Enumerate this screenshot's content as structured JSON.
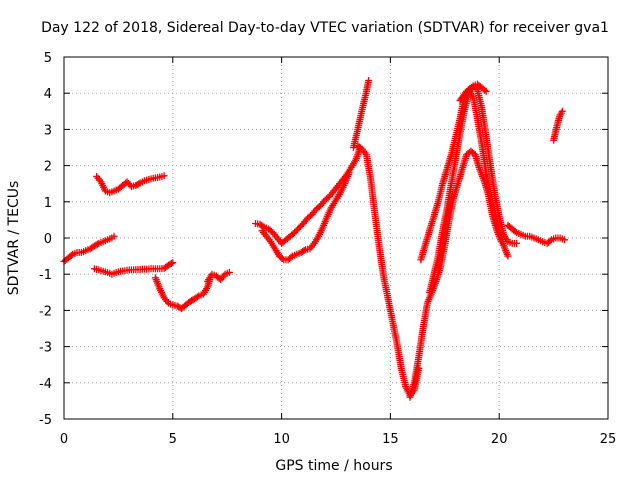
{
  "chart_data": {
    "type": "scatter",
    "title": "Day 122 of 2018, Sidereal Day-to-day VTEC variation (SDTVAR) for receiver gva1",
    "xlabel": "GPS time / hours",
    "ylabel": "SDTVAR / TECUs",
    "xlim": [
      0,
      25
    ],
    "ylim": [
      -5,
      5
    ],
    "xticks": [
      0,
      5,
      10,
      15,
      20,
      25
    ],
    "yticks": [
      -5,
      -4,
      -3,
      -2,
      -1,
      0,
      1,
      2,
      3,
      4,
      5
    ],
    "grid": true,
    "marker": "+",
    "color": "#ff0000",
    "series": [
      {
        "x": [
          0.0,
          0.2,
          0.4,
          0.6,
          0.8,
          1.0,
          1.2,
          1.4,
          1.6,
          1.8,
          2.0,
          2.2,
          2.3
        ],
        "y": [
          -0.65,
          -0.55,
          -0.45,
          -0.4,
          -0.4,
          -0.35,
          -0.3,
          -0.22,
          -0.15,
          -0.1,
          -0.05,
          0.0,
          0.05
        ]
      },
      {
        "x": [
          1.5,
          1.7,
          1.9,
          2.1,
          2.3,
          2.5,
          2.7,
          2.9,
          3.1,
          3.3,
          3.5,
          3.7,
          3.9,
          4.1,
          4.3,
          4.5,
          4.6
        ],
        "y": [
          1.7,
          1.55,
          1.3,
          1.25,
          1.3,
          1.35,
          1.45,
          1.55,
          1.42,
          1.45,
          1.52,
          1.58,
          1.62,
          1.65,
          1.67,
          1.7,
          1.72
        ]
      },
      {
        "x": [
          1.4,
          1.6,
          1.8,
          2.0,
          2.2,
          2.4,
          2.6,
          2.8,
          3.0,
          3.2,
          3.4,
          3.6,
          3.8,
          4.0,
          4.2,
          4.4,
          4.6,
          4.8,
          5.0
        ],
        "y": [
          -0.85,
          -0.88,
          -0.92,
          -0.95,
          -1.0,
          -0.95,
          -0.92,
          -0.9,
          -0.88,
          -0.88,
          -0.87,
          -0.86,
          -0.86,
          -0.85,
          -0.85,
          -0.85,
          -0.84,
          -0.75,
          -0.68
        ]
      },
      {
        "x": [
          4.2,
          4.4,
          4.6,
          4.8,
          5.0,
          5.2,
          5.4,
          5.6,
          5.8,
          6.0,
          6.2,
          6.4,
          6.6,
          6.7
        ],
        "y": [
          -1.1,
          -1.4,
          -1.65,
          -1.8,
          -1.85,
          -1.88,
          -1.95,
          -1.85,
          -1.75,
          -1.68,
          -1.6,
          -1.55,
          -1.35,
          -1.15
        ]
      },
      {
        "x": [
          6.6,
          6.8,
          7.0,
          7.2,
          7.4,
          7.6
        ],
        "y": [
          -1.2,
          -1.0,
          -1.05,
          -1.15,
          -1.0,
          -0.95
        ]
      },
      {
        "x": [
          8.8,
          9.0,
          9.2,
          9.4,
          9.6,
          9.8,
          10.0,
          10.2,
          10.4,
          10.6,
          10.8,
          11.0,
          11.2,
          11.4,
          11.6,
          11.8,
          12.0,
          12.2,
          12.4,
          12.6,
          12.8,
          13.0,
          13.2,
          13.4,
          13.5,
          13.6
        ],
        "y": [
          0.4,
          0.38,
          0.3,
          0.25,
          0.15,
          0.0,
          -0.15,
          -0.05,
          0.05,
          0.15,
          0.28,
          0.4,
          0.55,
          0.65,
          0.8,
          0.9,
          1.05,
          1.15,
          1.3,
          1.45,
          1.6,
          1.75,
          1.95,
          2.15,
          2.3,
          2.5
        ]
      },
      {
        "x": [
          9.1,
          9.3,
          9.5,
          9.7,
          9.9,
          10.1,
          10.3,
          10.5,
          10.7,
          10.9,
          11.1,
          11.3,
          11.5,
          11.7,
          11.9,
          12.1,
          12.3,
          12.5,
          12.7,
          12.9,
          13.1
        ],
        "y": [
          0.2,
          0.05,
          -0.1,
          -0.3,
          -0.5,
          -0.6,
          -0.6,
          -0.5,
          -0.45,
          -0.4,
          -0.32,
          -0.3,
          -0.15,
          0.05,
          0.3,
          0.6,
          0.85,
          1.05,
          1.25,
          1.5,
          1.8
        ]
      },
      {
        "x": [
          13.3,
          13.5,
          13.7,
          13.9,
          14.0
        ],
        "y": [
          2.5,
          3.0,
          3.55,
          4.05,
          4.35
        ]
      },
      {
        "x": [
          13.5,
          13.7,
          13.9,
          14.1,
          14.3,
          14.5,
          14.7,
          14.9,
          15.1,
          15.3,
          15.5,
          15.7,
          15.9,
          16.1,
          16.3
        ],
        "y": [
          2.55,
          2.45,
          2.3,
          1.6,
          0.6,
          -0.3,
          -1.1,
          -1.7,
          -2.3,
          -2.9,
          -3.6,
          -4.1,
          -4.35,
          -4.2,
          -3.6
        ]
      },
      {
        "x": [
          15.9,
          16.1,
          16.3,
          16.5,
          16.7,
          16.9,
          17.1,
          17.3,
          17.5,
          17.7,
          17.9,
          18.1,
          18.3,
          18.5,
          18.7,
          18.9,
          19.1,
          19.3,
          19.5,
          19.7,
          19.9,
          20.1
        ],
        "y": [
          -4.4,
          -4.0,
          -3.3,
          -2.5,
          -1.8,
          -1.5,
          -1.2,
          -0.8,
          -0.2,
          0.5,
          1.1,
          1.5,
          1.9,
          2.3,
          2.4,
          2.3,
          1.9,
          1.6,
          1.2,
          0.6,
          0.2,
          -0.1
        ]
      },
      {
        "x": [
          16.4,
          16.6,
          16.8,
          17.0,
          17.2,
          17.4,
          17.6,
          17.8,
          18.0,
          18.2,
          18.4,
          18.6,
          18.8,
          19.0,
          19.2,
          19.4,
          19.6,
          19.8,
          20.0,
          20.2,
          20.4
        ],
        "y": [
          -0.6,
          -0.2,
          0.2,
          0.6,
          1.0,
          1.5,
          1.9,
          2.3,
          2.8,
          3.3,
          3.9,
          4.1,
          3.9,
          3.3,
          2.6,
          1.8,
          1.2,
          0.7,
          0.2,
          -0.2,
          -0.5
        ]
      },
      {
        "x": [
          16.8,
          17.0,
          17.2,
          17.4,
          17.6,
          17.8,
          18.0,
          18.2,
          18.4,
          18.6,
          18.8,
          19.0,
          19.2,
          19.4,
          19.6,
          19.8,
          20.0,
          20.2,
          20.4,
          20.6,
          20.8
        ],
        "y": [
          -1.5,
          -1.0,
          -0.5,
          0.2,
          0.8,
          1.5,
          2.2,
          2.9,
          3.5,
          4.0,
          4.2,
          4.1,
          3.6,
          2.8,
          2.0,
          1.2,
          0.6,
          0.1,
          -0.1,
          -0.15,
          -0.15
        ]
      },
      {
        "x": [
          18.2,
          18.5,
          18.8,
          19.0,
          19.2,
          19.4
        ],
        "y": [
          3.8,
          4.05,
          4.2,
          4.25,
          4.15,
          4.05
        ]
      },
      {
        "x": [
          20.4,
          20.6,
          20.8,
          21.0,
          21.2,
          21.4,
          21.6,
          21.8,
          22.0,
          22.2,
          22.4,
          22.6,
          22.8,
          23.0
        ],
        "y": [
          0.35,
          0.25,
          0.15,
          0.1,
          0.05,
          0.05,
          0.0,
          -0.05,
          -0.1,
          -0.15,
          -0.05,
          0.0,
          0.0,
          -0.05
        ]
      },
      {
        "x": [
          22.5,
          22.6,
          22.7,
          22.8,
          22.9
        ],
        "y": [
          2.7,
          2.95,
          3.2,
          3.4,
          3.5
        ]
      }
    ]
  }
}
